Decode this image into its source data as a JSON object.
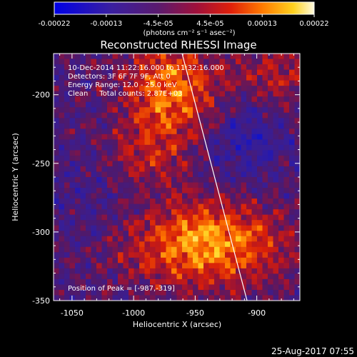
{
  "colorbar": {
    "ticks": [
      "-0.00022",
      "-0.00013",
      "-4.5e-05",
      "4.5e-05",
      "0.00013",
      "0.00022"
    ],
    "unit_label": "(photons cm⁻² s⁻¹ asec⁻²)"
  },
  "image": {
    "title": "Reconstructed RHESSI Image",
    "info_lines": [
      "10-Dec-2014 11:22:16.000 to 11:32:16.000",
      "Detectors: 3F 6F 7F 9F, Att 0",
      "Energy Range: 12.0 - 25.0 keV",
      "Clean     Total counts: 2.87E+03"
    ],
    "peak_text": "Position of Peak = [-987,-319]"
  },
  "axes": {
    "x_label": "Heliocentric X (arcsec)",
    "y_label": "Heliocentric Y (arcsec)",
    "x_ticks": [
      "-1050",
      "-1000",
      "-950",
      "-900"
    ],
    "y_ticks": [
      "-200",
      "-250",
      "-300",
      "-350"
    ]
  },
  "footer": {
    "timestamp": "25-Aug-2017 07:55"
  },
  "colors": {
    "background": "#000000",
    "axis": "#ffffff",
    "limb_line": "#ffffff"
  }
}
